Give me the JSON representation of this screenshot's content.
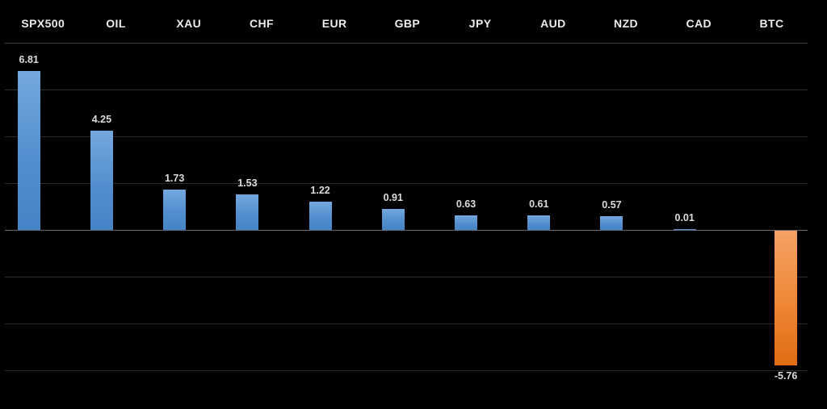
{
  "chart_data": {
    "type": "bar",
    "title": "",
    "xlabel": "",
    "ylabel": "",
    "categories": [
      "SPX500",
      "OIL",
      "XAU",
      "CHF",
      "EUR",
      "GBP",
      "JPY",
      "AUD",
      "NZD",
      "CAD",
      "BTC"
    ],
    "values": [
      6.81,
      4.25,
      1.73,
      1.53,
      1.22,
      0.91,
      0.63,
      0.61,
      0.57,
      0.01,
      -5.76
    ],
    "value_labels": [
      "6.81",
      "4.25",
      "1.73",
      "1.53",
      "1.22",
      "0.91",
      "0.63",
      "0.61",
      "0.57",
      "0.01",
      "-5.76"
    ],
    "ylim": [
      -7,
      8
    ],
    "grid_values": [
      8,
      6,
      4,
      2,
      0,
      -2,
      -4,
      -6
    ],
    "grid_on": true,
    "legend_position": "none",
    "background_color": "#000000",
    "positive_bar_color": "#5b9bd5",
    "negative_bar_color": "#ed7d31",
    "grid_color": "#2b2b2b",
    "zero_line_color": "#6a6a6a",
    "category_label_color": "#ededed",
    "value_label_color": "#dcdcdc"
  }
}
